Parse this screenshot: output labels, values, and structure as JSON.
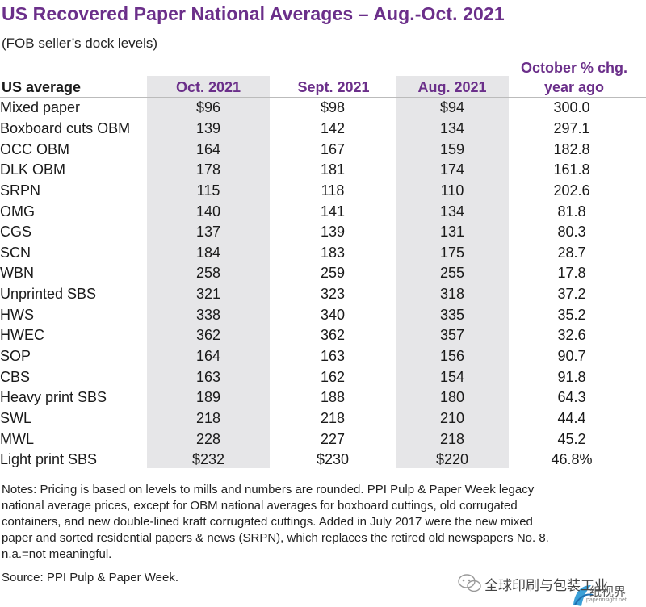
{
  "title": "US Recovered Paper National Averages – Aug.-Oct. 2021",
  "subtitle": "(FOB seller’s dock levels)",
  "headers": {
    "label": "US average",
    "oct": "Oct. 2021",
    "sept": "Sept. 2021",
    "aug": "Aug. 2021",
    "chg_line1": "October % chg.",
    "chg_line2": "year ago"
  },
  "rows": [
    {
      "name": "Mixed paper",
      "oct": "$96",
      "sept": "$98",
      "aug": "$94",
      "chg": "300.0"
    },
    {
      "name": "Boxboard cuts OBM",
      "oct": "139",
      "sept": "142",
      "aug": "134",
      "chg": "297.1"
    },
    {
      "name": "OCC OBM",
      "oct": "164",
      "sept": "167",
      "aug": "159",
      "chg": "182.8"
    },
    {
      "name": "DLK OBM",
      "oct": "178",
      "sept": "181",
      "aug": "174",
      "chg": "161.8"
    },
    {
      "name": "SRPN",
      "oct": "115",
      "sept": "118",
      "aug": "110",
      "chg": "202.6"
    },
    {
      "name": "OMG",
      "oct": "140",
      "sept": "141",
      "aug": "134",
      "chg": "81.8"
    },
    {
      "name": "CGS",
      "oct": "137",
      "sept": "139",
      "aug": "131",
      "chg": "80.3"
    },
    {
      "name": "SCN",
      "oct": "184",
      "sept": "183",
      "aug": "175",
      "chg": "28.7"
    },
    {
      "name": "WBN",
      "oct": "258",
      "sept": "259",
      "aug": "255",
      "chg": "17.8"
    },
    {
      "name": "Unprinted SBS",
      "oct": "321",
      "sept": "323",
      "aug": "318",
      "chg": "37.2"
    },
    {
      "name": "HWS",
      "oct": "338",
      "sept": "340",
      "aug": "335",
      "chg": "35.2"
    },
    {
      "name": "HWEC",
      "oct": "362",
      "sept": "362",
      "aug": "357",
      "chg": "32.6"
    },
    {
      "name": "SOP",
      "oct": "164",
      "sept": "163",
      "aug": "156",
      "chg": "90.7"
    },
    {
      "name": "CBS",
      "oct": "163",
      "sept": "162",
      "aug": "154",
      "chg": "91.8"
    },
    {
      "name": "Heavy print SBS",
      "oct": "189",
      "sept": "188",
      "aug": "180",
      "chg": "64.3"
    },
    {
      "name": "SWL",
      "oct": "218",
      "sept": "218",
      "aug": "210",
      "chg": "44.4"
    },
    {
      "name": "MWL",
      "oct": "228",
      "sept": "227",
      "aug": "218",
      "chg": "45.2"
    },
    {
      "name": "Light print SBS",
      "oct": "$232",
      "sept": "$230",
      "aug": "$220",
      "chg": "46.8%"
    }
  ],
  "notes": [
    "Notes: Pricing is based on levels to mills and numbers are rounded. PPI Pulp & Paper Week legacy",
    "national average prices, except for OBM national averages for boxboard cuttings, old corrugated",
    "containers, and new double-lined kraft corrugated cuttings. Added in July 2017 were the new mixed",
    "paper and sorted residential papers & news (SRPN), which replaces the retired old newspapers No. 8.",
    "n.a.=not meaningful."
  ],
  "source": "Source: PPI Pulp & Paper Week.",
  "watermark": {
    "text": "全球印刷与包装工业",
    "sub1": "纸视界",
    "sub2": "paperinsight.net"
  },
  "colors": {
    "accent": "#6b2f8a",
    "shade": "#e6e6e8"
  }
}
